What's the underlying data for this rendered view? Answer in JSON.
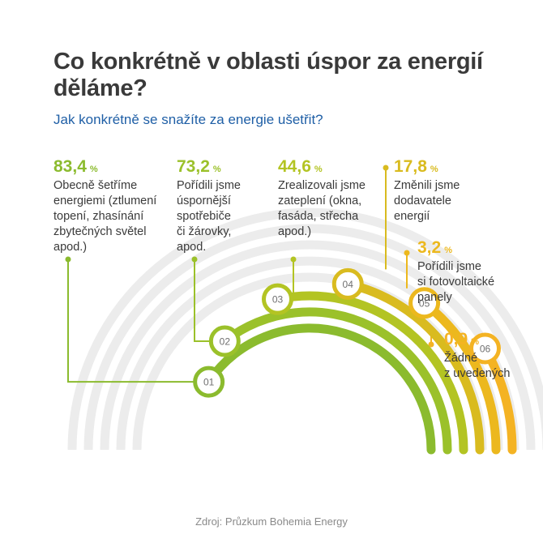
{
  "title": "Co konkrétně v oblasti úspor za energií děláme?",
  "subtitle": "Jak konkrétně se snažíte za energie ušetřit?",
  "source": "Zdroj: Průzkum Bohemia Energy",
  "chart_data": {
    "type": "bar",
    "unit": "%",
    "categories": [
      "01",
      "02",
      "03",
      "04",
      "05",
      "06"
    ],
    "items": [
      {
        "badge": "01",
        "value": 83.4,
        "value_text": "83,4",
        "lines": [
          "Obecně šetříme",
          "energiemi (ztlumení",
          "topení, zhasínání",
          "zbytečných světel",
          "apod.)"
        ],
        "color": "#8bbb2e"
      },
      {
        "badge": "02",
        "value": 73.2,
        "value_text": "73,2",
        "lines": [
          "Pořídili jsme",
          "úspornější",
          "spotřebiče",
          "či žárovky,",
          "apod."
        ],
        "color": "#9bc12a"
      },
      {
        "badge": "03",
        "value": 44.6,
        "value_text": "44,6",
        "lines": [
          "Zrealizovali jsme",
          "zateplení (okna,",
          "fasáda, střecha",
          "apod.)"
        ],
        "color": "#b3c423"
      },
      {
        "badge": "04",
        "value": 17.8,
        "value_text": "17,8",
        "lines": [
          "Změnili jsme",
          "dodavatele",
          "energií"
        ],
        "color": "#d9bb1f"
      },
      {
        "badge": "05",
        "value": 3.2,
        "value_text": "3,2",
        "lines": [
          "Pořídili jsme",
          "si fotovoltaické",
          "panely"
        ],
        "color": "#ecb81e"
      },
      {
        "badge": "06",
        "value": 0.9,
        "value_text": "0,9",
        "lines": [
          "Žádné",
          "z uvedených"
        ],
        "color": "#f4b323"
      }
    ]
  }
}
